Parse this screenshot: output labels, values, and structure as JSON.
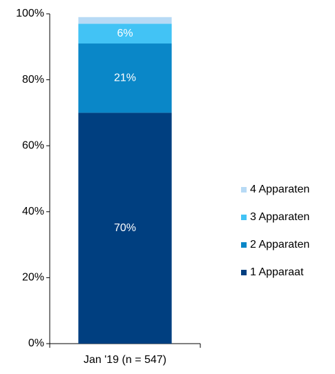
{
  "chart_data": {
    "type": "stacked_bar",
    "categories": [
      "Jan '19 (n = 547)"
    ],
    "series": [
      {
        "name": "1 Apparaat",
        "color": "#003f80",
        "values": [
          70
        ],
        "value_labels": [
          "70%"
        ]
      },
      {
        "name": "2 Apparaten",
        "color": "#0a87c8",
        "values": [
          21
        ],
        "value_labels": [
          "21%"
        ]
      },
      {
        "name": "3 Apparaten",
        "color": "#42c3f5",
        "values": [
          6
        ],
        "value_labels": [
          "6%"
        ]
      },
      {
        "name": "4 Apparaten",
        "color": "#b7daf5",
        "values": [
          2
        ]
      }
    ],
    "ylim": [
      0,
      100
    ],
    "yticks": [
      {
        "value": 0,
        "label": "0%"
      },
      {
        "value": 20,
        "label": "20%"
      },
      {
        "value": 40,
        "label": "40%"
      },
      {
        "value": 60,
        "label": "60%"
      },
      {
        "value": 80,
        "label": "80%"
      },
      {
        "value": 100,
        "label": "100%"
      }
    ],
    "legend": "right"
  }
}
